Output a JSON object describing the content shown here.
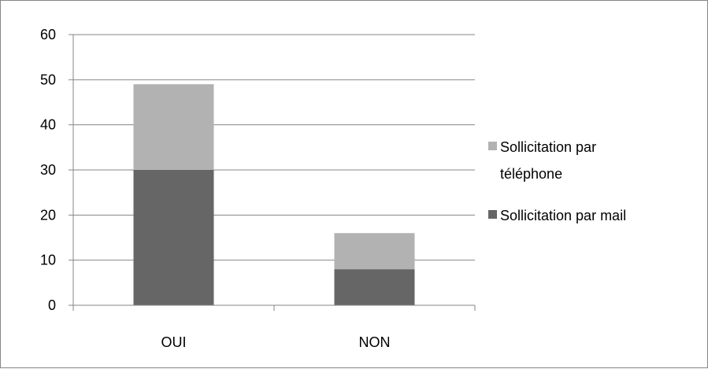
{
  "chart_data": {
    "type": "bar",
    "stacked": true,
    "categories": [
      "OUI",
      "NON"
    ],
    "series": [
      {
        "name": "Sollicitation par mail",
        "values": [
          30,
          8
        ],
        "color": "#666666"
      },
      {
        "name": "Sollicitation par téléphone",
        "values": [
          19,
          8
        ],
        "color": "#b2b2b2"
      }
    ],
    "ylim": [
      0,
      60
    ],
    "yticks": [
      0,
      10,
      20,
      30,
      40,
      50,
      60
    ],
    "grid": true,
    "legend_position": "right",
    "legend": {
      "entries": [
        {
          "series": 1,
          "lines": [
            "Sollicitation par",
            "téléphone"
          ]
        },
        {
          "series": 0,
          "lines": [
            "Sollicitation par mail"
          ]
        }
      ]
    }
  }
}
